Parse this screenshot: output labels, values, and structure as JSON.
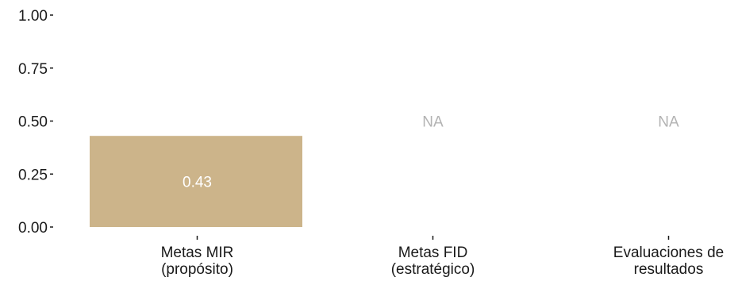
{
  "chart_data": {
    "type": "bar",
    "categories": [
      [
        "Metas MIR",
        "(propósito)"
      ],
      [
        "Metas FID",
        "(estratégico)"
      ],
      [
        "Evaluaciones de",
        "resultados"
      ]
    ],
    "values": [
      0.43,
      null,
      null
    ],
    "data_labels": [
      "0.43",
      "NA",
      "NA"
    ],
    "yticks": [
      "0.00",
      "0.25",
      "0.50",
      "0.75",
      "1.00"
    ],
    "ylim": [
      0,
      1
    ],
    "grid": false,
    "colors": {
      "bar": "#ccb48a",
      "value_label": "#ffffff",
      "na_label": "#b3b3b3",
      "text": "#1a1a1a"
    }
  }
}
